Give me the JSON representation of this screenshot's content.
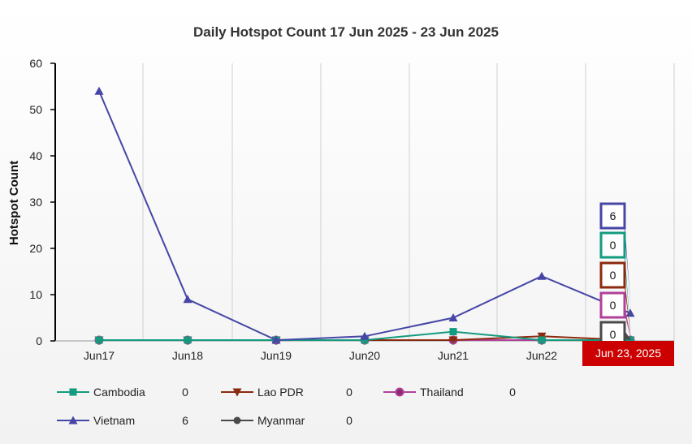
{
  "chart_data": {
    "type": "line",
    "title": "Daily Hotspot Count 17 Jun 2025 - 23 Jun 2025",
    "ylabel": "Hotspot Count",
    "xlabel": "",
    "categories": [
      "Jun17",
      "Jun18",
      "Jun19",
      "Jun20",
      "Jun21",
      "Jun22",
      "Jun23"
    ],
    "visible_x_ticks": [
      "Jun17",
      "Jun18",
      "Jun19",
      "Jun20",
      "Jun21",
      "Jun22"
    ],
    "ylim": [
      0,
      60
    ],
    "yticks": [
      0,
      10,
      20,
      30,
      40,
      50,
      60
    ],
    "grid": "vertical",
    "legend_position": "bottom",
    "crosshair_label": "Jun 23, 2025",
    "series": [
      {
        "name": "Cambodia",
        "color": "#139b7f",
        "marker": "square",
        "values": [
          0,
          0,
          0,
          0,
          2,
          0,
          0
        ],
        "latest": "0"
      },
      {
        "name": "Lao PDR",
        "color": "#8b2a0e",
        "marker": "triangle-down",
        "values": [
          0,
          0,
          0,
          0,
          0,
          1,
          0
        ],
        "latest": "0"
      },
      {
        "name": "Thailand",
        "color": "#b0409a",
        "marker": "circle-filled",
        "values": [
          0,
          0,
          0,
          0,
          0,
          0,
          0
        ],
        "latest": "0"
      },
      {
        "name": "Vietnam",
        "color": "#4646a6",
        "marker": "triangle-up",
        "values": [
          54,
          9,
          0,
          1,
          5,
          14,
          6
        ],
        "latest": "6"
      },
      {
        "name": "Myanmar",
        "color": "#4a4a4a",
        "marker": "circle",
        "values": [
          0,
          0,
          0,
          0,
          0,
          0,
          0
        ],
        "latest": "0"
      }
    ],
    "tooltips": [
      {
        "series": "Vietnam",
        "value": "6"
      },
      {
        "series": "Cambodia",
        "value": "0"
      },
      {
        "series": "Lao PDR",
        "value": "0"
      },
      {
        "series": "Thailand",
        "value": "0"
      },
      {
        "series": "Myanmar",
        "value": "0"
      }
    ]
  },
  "colors": {
    "crosshair_label_bg": "#cc0000",
    "grid": "#d0d0d0",
    "axis": "#000000"
  }
}
